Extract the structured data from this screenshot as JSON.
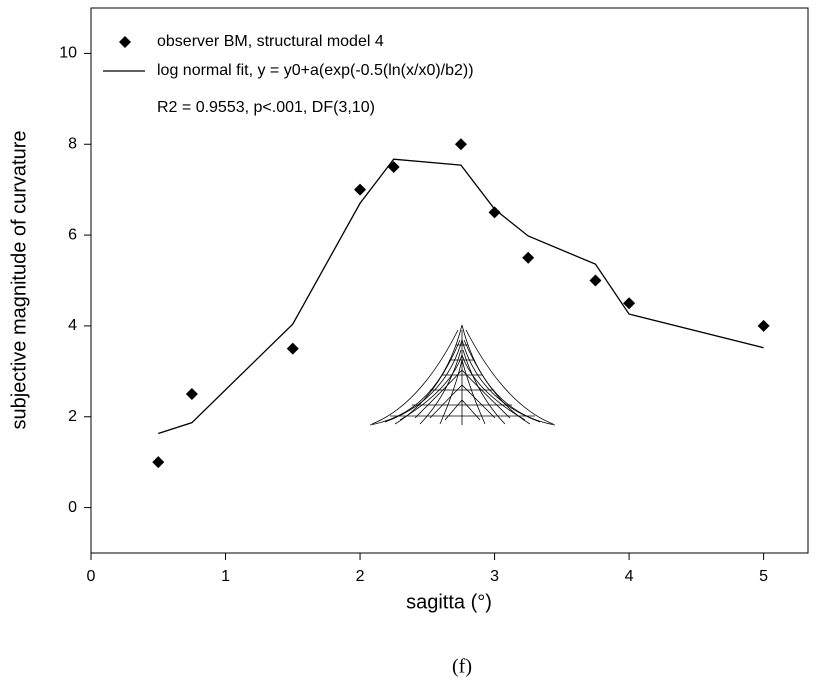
{
  "chart_data": {
    "type": "scatter",
    "x_label": "sagitta (°)",
    "y_label": "subjective magnitude of curvature",
    "annotation": "R2 = 0.9553, p<.001, DF(3,10)",
    "caption": "(f)",
    "x": [
      0.5,
      0.75,
      1.5,
      2,
      2.25,
      2.75,
      3,
      3.25,
      3.75,
      4,
      5
    ],
    "series": [
      {
        "name": "observer BM, structural model 4",
        "type": "scatter",
        "color": "#000000",
        "values": [
          1,
          2.5,
          3.5,
          7,
          7.5,
          8,
          6.5,
          5.5,
          5,
          4.5,
          4
        ]
      },
      {
        "name": "log normal fit, y = y0+a(exp(-0.5(ln(x/x0)/b2))",
        "type": "line",
        "color": "#000000",
        "values": [
          1.63,
          1.87,
          4.04,
          6.7,
          7.67,
          7.54,
          6.57,
          5.98,
          5.36,
          4.26,
          3.52
        ]
      }
    ],
    "xlim": [
      0,
      5.33
    ],
    "ylim": [
      -1,
      11
    ],
    "xticks": [
      0,
      1,
      2,
      3,
      4,
      5
    ],
    "yticks": [
      0,
      2,
      4,
      6,
      8,
      10
    ]
  }
}
